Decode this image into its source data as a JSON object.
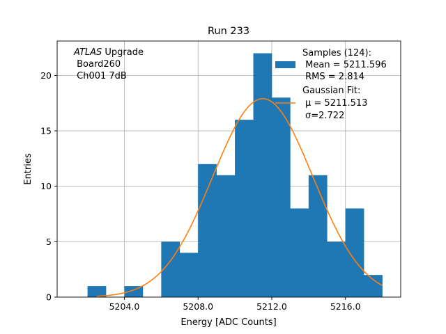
{
  "chart_data": {
    "type": "bar",
    "title": "Run 233",
    "xlabel": "Energy [ADC Counts]",
    "ylabel": "Entries",
    "xlim": [
      5200.35,
      5219.0
    ],
    "ylim": [
      0,
      23.1
    ],
    "xticks": [
      "5204.0",
      "5208.0",
      "5212.0",
      "5216.0"
    ],
    "xtick_values": [
      5204,
      5208,
      5212,
      5216
    ],
    "yticks": [
      "0",
      "5",
      "10",
      "15",
      "20"
    ],
    "ytick_values": [
      0,
      5,
      10,
      15,
      20
    ],
    "grid": true,
    "bin_width": 1.0,
    "bins": [
      {
        "x0": 5202.0,
        "count": 1
      },
      {
        "x0": 5203.0,
        "count": 0
      },
      {
        "x0": 5204.0,
        "count": 1
      },
      {
        "x0": 5205.0,
        "count": 0
      },
      {
        "x0": 5206.0,
        "count": 5
      },
      {
        "x0": 5207.0,
        "count": 4
      },
      {
        "x0": 5208.0,
        "count": 12
      },
      {
        "x0": 5209.0,
        "count": 11
      },
      {
        "x0": 5210.0,
        "count": 16
      },
      {
        "x0": 5211.0,
        "count": 22
      },
      {
        "x0": 5212.0,
        "count": 18
      },
      {
        "x0": 5213.0,
        "count": 8
      },
      {
        "x0": 5214.0,
        "count": 11
      },
      {
        "x0": 5215.0,
        "count": 5
      },
      {
        "x0": 5216.0,
        "count": 8
      },
      {
        "x0": 5217.0,
        "count": 2
      }
    ],
    "fit": {
      "type": "gaussian",
      "mu": 5211.513,
      "sigma": 2.722,
      "amplitude": 17.9,
      "x_range": [
        5202.5,
        5218.0
      ]
    },
    "colors": {
      "histogram": "#1f77b4",
      "fit": "#ff7f0e",
      "grid": "#b0b0b0"
    },
    "legend": {
      "placement": "top-right",
      "samples_line1": "Samples (124):",
      "samples_line2": " Mean = 5211.596",
      "samples_line3": " RMS = 2.814",
      "fit_line1": "Gaussian Fit:",
      "fit_line2": "μ = 5211.513",
      "fit_line3": "σ=2.722"
    },
    "annotation": {
      "experiment": "ATLAS",
      "experiment_suffix": " Upgrade",
      "line2": " Board260",
      "line3": " Ch001 7dB"
    }
  }
}
